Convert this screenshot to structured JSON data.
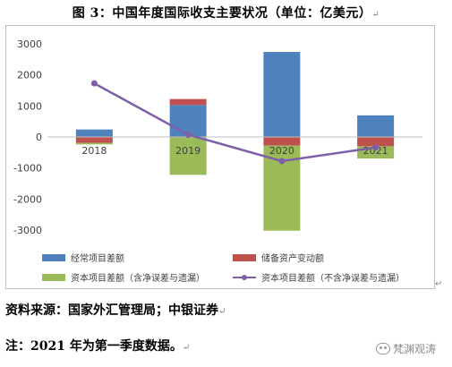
{
  "figure": {
    "title": "图 3：中国年度国际收支主要状况（单位：亿美元）",
    "para_mark": "↵"
  },
  "source": "资料来源：国家外汇管理局；中银证券",
  "note": "注：2021 年为第一季度数据。",
  "watermark": {
    "text": "梵渊观涛",
    "icon": "wechat-icon"
  },
  "chart_data": {
    "type": "bar",
    "stacked": true,
    "categories": [
      "2018",
      "2019",
      "2020",
      "2021"
    ],
    "ylim": [
      -3000,
      3000
    ],
    "yticks": [
      3000,
      2000,
      1000,
      0,
      -1000,
      -2000,
      -3000
    ],
    "grid": false,
    "legend_position": "bottom",
    "series": [
      {
        "name": "经常项目差额",
        "kind": "bar",
        "color": "#4f81bd",
        "values": [
          241,
          1029,
          2740,
          696
        ]
      },
      {
        "name": "储备资产变动额",
        "kind": "bar",
        "color": "#c0504d",
        "values": [
          -189,
          193,
          -280,
          -300
        ]
      },
      {
        "name": "资本项目差额（含净误差与遗漏）",
        "kind": "bar",
        "color": "#9bbb59",
        "values": [
          -52,
          -1222,
          -2740,
          -396
        ]
      },
      {
        "name": "资本项目差额（不含净误差与遗漏）",
        "kind": "line",
        "color": "#7f5fa8",
        "values": [
          1727,
          73,
          -778,
          -340
        ]
      }
    ]
  }
}
